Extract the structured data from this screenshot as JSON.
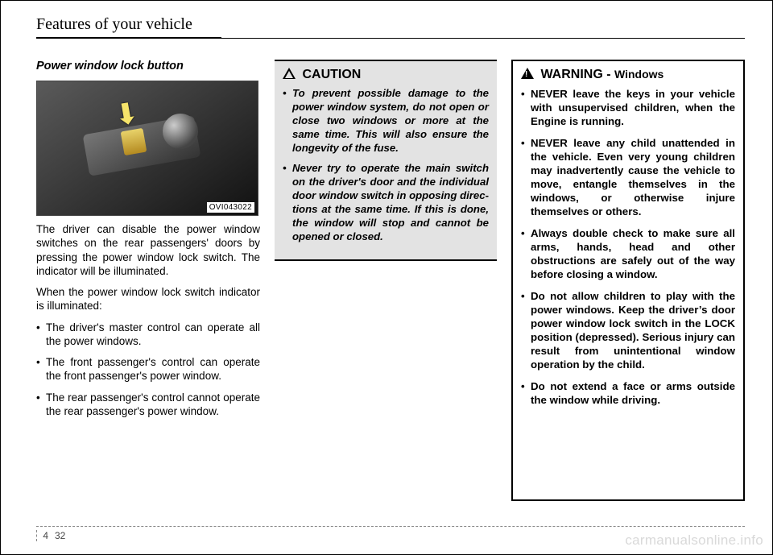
{
  "header": "Features of your vehicle",
  "col1": {
    "title": "Power window lock button",
    "photo_tag": "OVI043022",
    "p1": "The driver can disable the power window switches on the rear passen­gers' doors by pressing the power window lock switch. The indicator will be illuminated.",
    "p2": "When the power window lock switch indicator is illuminated:",
    "bullets": [
      "The driver's master control can operate all the power windows.",
      "The front passenger's control can operate the front passenger's power window.",
      "The rear passenger's control can­not operate the rear passenger's power window."
    ]
  },
  "caution": {
    "heading": "CAUTION",
    "items": [
      "To prevent possible damage to the power window system, do not open or close two win­dows or more at the same time. This will also ensure the longevity of the fuse.",
      "Never try to operate the main switch on the driver's door and the individual door win­dow switch in opposing direc­tions at the same time. If this is done, the window will stop and cannot be opened or closed."
    ]
  },
  "warning": {
    "heading": "WARNING - ",
    "sub": "Windows",
    "items": [
      "NEVER leave the keys in your vehicle with unsupervised children, when the Engine is running.",
      "NEVER leave any child unat­tended in the vehicle.  Even very young children may inad­vertently cause the vehicle to move, entangle themselves in the windows, or otherwise injure themselves or others.",
      "Always double check to make sure all arms, hands, head and other obstructions are safely out of the way before closing a window.",
      "Do not allow children to play with the power windows. Keep the driver’s door power win­dow lock switch in the LOCK position (depressed). Serious injury can result from uninten­tional window operation by the child.",
      "Do not extend a face or arms outside the window while driving."
    ]
  },
  "footer": {
    "chapter": "4",
    "page": "32"
  },
  "watermark": "carmanualsonline.info"
}
